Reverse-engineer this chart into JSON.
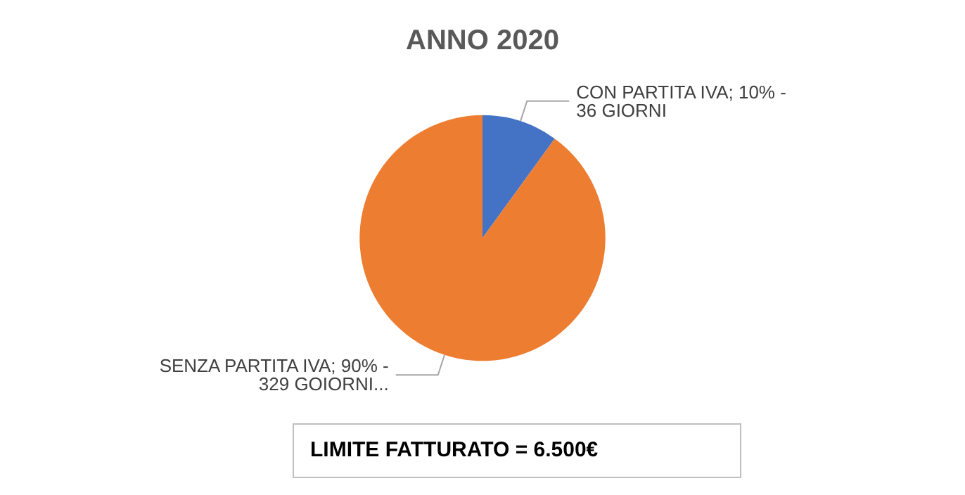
{
  "chart_data": {
    "type": "pie",
    "title": "ANNO 2020",
    "categories": [
      "CON PARTITA IVA",
      "SENZA PARTITA IVA"
    ],
    "values": [
      10,
      90
    ],
    "value_labels": [
      "10% - 36 GIORNI",
      "90% - 329 GOIORNI..."
    ],
    "colors": [
      "#4472c4",
      "#ed7d31"
    ],
    "legend": false,
    "annotations": [
      "LIMITE FATTURATO = 6.500€"
    ]
  }
}
